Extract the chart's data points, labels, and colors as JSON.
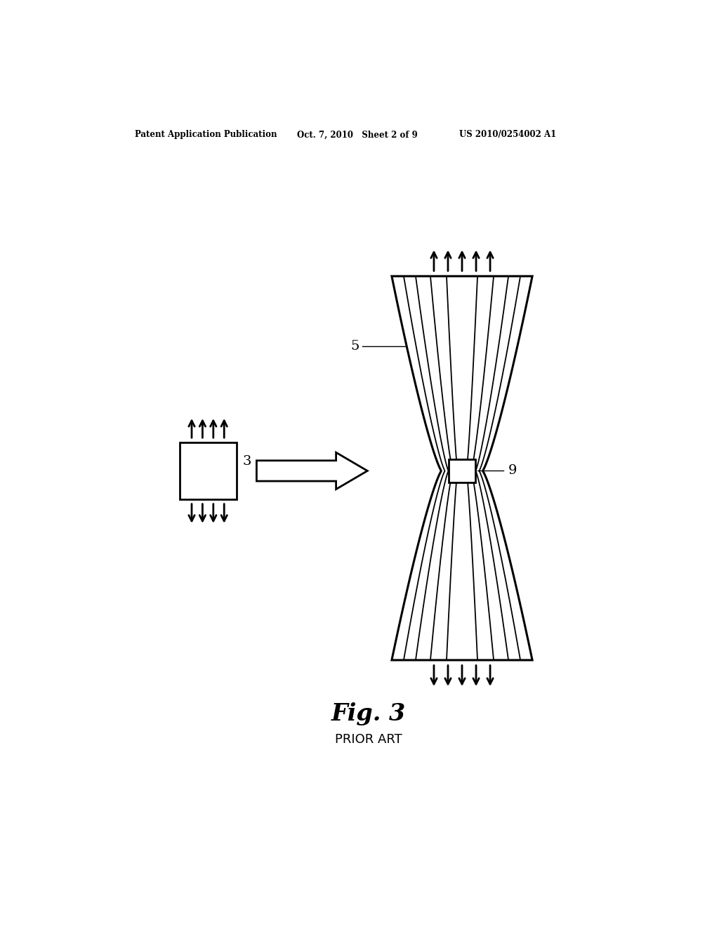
{
  "bg_color": "#ffffff",
  "header_text_left": "Patent Application Publication",
  "header_text_mid": "Oct. 7, 2010   Sheet 2 of 9",
  "header_text_right": "US 2010/0254002 A1",
  "fig3_label": "Fig. 3",
  "prior_art_label": "PRIOR ART",
  "label_3": "3",
  "label_5": "5",
  "label_9": "9",
  "page_width": 10.24,
  "page_height": 13.2
}
